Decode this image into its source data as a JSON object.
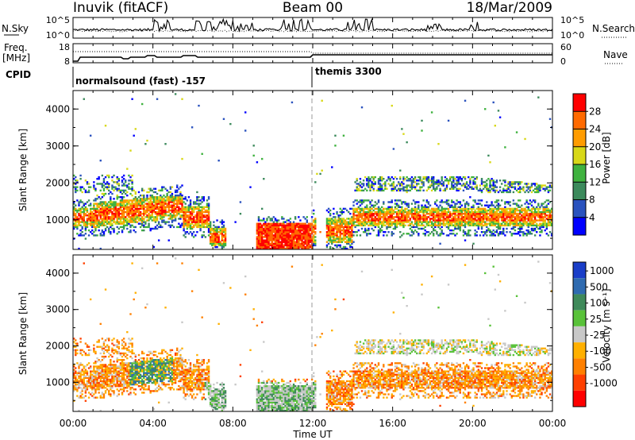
{
  "header": {
    "station": "Inuvik (fitACF)",
    "beam": "Beam 00",
    "date": "18/Mar/2009"
  },
  "noise_panel": {
    "left_label": "N.Sky",
    "right_label": "N.Search",
    "left_ticks": [
      "10^5",
      "10^0"
    ],
    "right_ticks": [
      "10^5",
      "10^0"
    ]
  },
  "freq_panel": {
    "left_label_top": "Freq.",
    "left_label_bottom": "[MHz]",
    "right_label": "Nave",
    "left_ticks": [
      "18",
      "8"
    ],
    "right_ticks": [
      "60",
      "0"
    ]
  },
  "cpid": {
    "label": "CPID",
    "segments": [
      {
        "text": "normalsound (fast) -157",
        "start_h": 0
      },
      {
        "text": "themis 3300",
        "start_h": 12
      }
    ]
  },
  "chart_data": [
    {
      "type": "heatmap",
      "name": "Power",
      "ylabel": "Slant Range [km]",
      "ylim": [
        200,
        4500
      ],
      "yticks": [
        1000,
        2000,
        3000,
        4000
      ],
      "xlim_hours": [
        0,
        24
      ],
      "colorbar": {
        "label": "Power [dB]",
        "ticks": [
          "4",
          "8",
          "12",
          "16",
          "20",
          "24",
          "28"
        ],
        "colors": [
          "#0000ff",
          "#2a52be",
          "#3c8a5c",
          "#3fb23f",
          "#d8d818",
          "#ff9c00",
          "#ff6a00",
          "#ff0000"
        ]
      }
    },
    {
      "type": "heatmap",
      "name": "Velocity",
      "ylabel": "Slant Range [km]",
      "ylim": [
        200,
        4500
      ],
      "yticks": [
        1000,
        2000,
        3000,
        4000
      ],
      "xlim_hours": [
        0,
        24
      ],
      "colorbar": {
        "label": "Velocity [m s⁻¹]",
        "ticks": [
          "1000",
          "500",
          "100",
          "25",
          "-25",
          "-100",
          "-500",
          "-1000"
        ],
        "colors": [
          "#1a3ec8",
          "#2f6bb0",
          "#3f8a5a",
          "#59c23a",
          "#c8c8c8",
          "#ffb000",
          "#ff8000",
          "#ff4000",
          "#ff0000"
        ]
      }
    }
  ],
  "x_axis": {
    "label": "Time UT",
    "ticks": [
      "00:00",
      "04:00",
      "08:00",
      "12:00",
      "16:00",
      "20:00",
      "00:00"
    ]
  }
}
